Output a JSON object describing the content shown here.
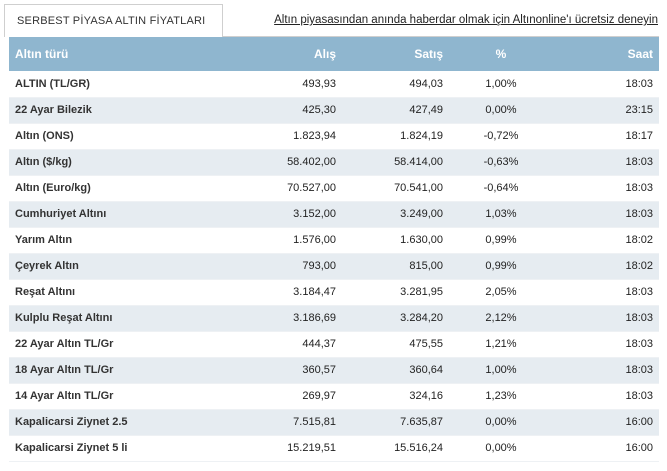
{
  "tab": {
    "label": "SERBEST PİYASA ALTIN FİYATLARI"
  },
  "promo": {
    "text": "Altın piyasasından anında haberdar olmak için Altınonline'ı ücretsiz deneyin"
  },
  "table": {
    "headers": [
      "Altın türü",
      "Alış",
      "Satış",
      "%",
      "Saat"
    ],
    "rows": [
      [
        "ALTIN (TL/GR)",
        "493,93",
        "494,03",
        "1,00%",
        "18:03"
      ],
      [
        "22 Ayar Bilezik",
        "425,30",
        "427,49",
        "0,00%",
        "23:15"
      ],
      [
        "Altın (ONS)",
        "1.823,94",
        "1.824,19",
        "-0,72%",
        "18:17"
      ],
      [
        "Altın ($/kg)",
        "58.402,00",
        "58.414,00",
        "-0,63%",
        "18:03"
      ],
      [
        "Altın (Euro/kg)",
        "70.527,00",
        "70.541,00",
        "-0,64%",
        "18:03"
      ],
      [
        "Cumhuriyet Altını",
        "3.152,00",
        "3.249,00",
        "1,03%",
        "18:03"
      ],
      [
        "Yarım Altın",
        "1.576,00",
        "1.630,00",
        "0,99%",
        "18:02"
      ],
      [
        "Çeyrek Altın",
        "793,00",
        "815,00",
        "0,99%",
        "18:02"
      ],
      [
        "Reşat Altını",
        "3.184,47",
        "3.281,95",
        "2,05%",
        "18:03"
      ],
      [
        "Kulplu Reşat Altını",
        "3.186,69",
        "3.284,20",
        "2,12%",
        "18:03"
      ],
      [
        "22 Ayar Altın TL/Gr",
        "444,37",
        "475,55",
        "1,21%",
        "18:03"
      ],
      [
        "18 Ayar Altın TL/Gr",
        "360,57",
        "360,64",
        "1,00%",
        "18:03"
      ],
      [
        "14 Ayar Altın TL/Gr",
        "269,97",
        "324,16",
        "1,23%",
        "18:03"
      ],
      [
        "Kapalicarsi Ziynet 2.5",
        "7.515,81",
        "7.635,87",
        "0,00%",
        "16:00"
      ],
      [
        "Kapalicarsi Ziynet 5 li",
        "15.219,51",
        "15.516,24",
        "0,00%",
        "16:00"
      ]
    ]
  },
  "colors": {
    "header_bg": "#8fb6cf",
    "row_alt_bg": "#e6ecf1",
    "tab_border": "#cfcfcf"
  }
}
